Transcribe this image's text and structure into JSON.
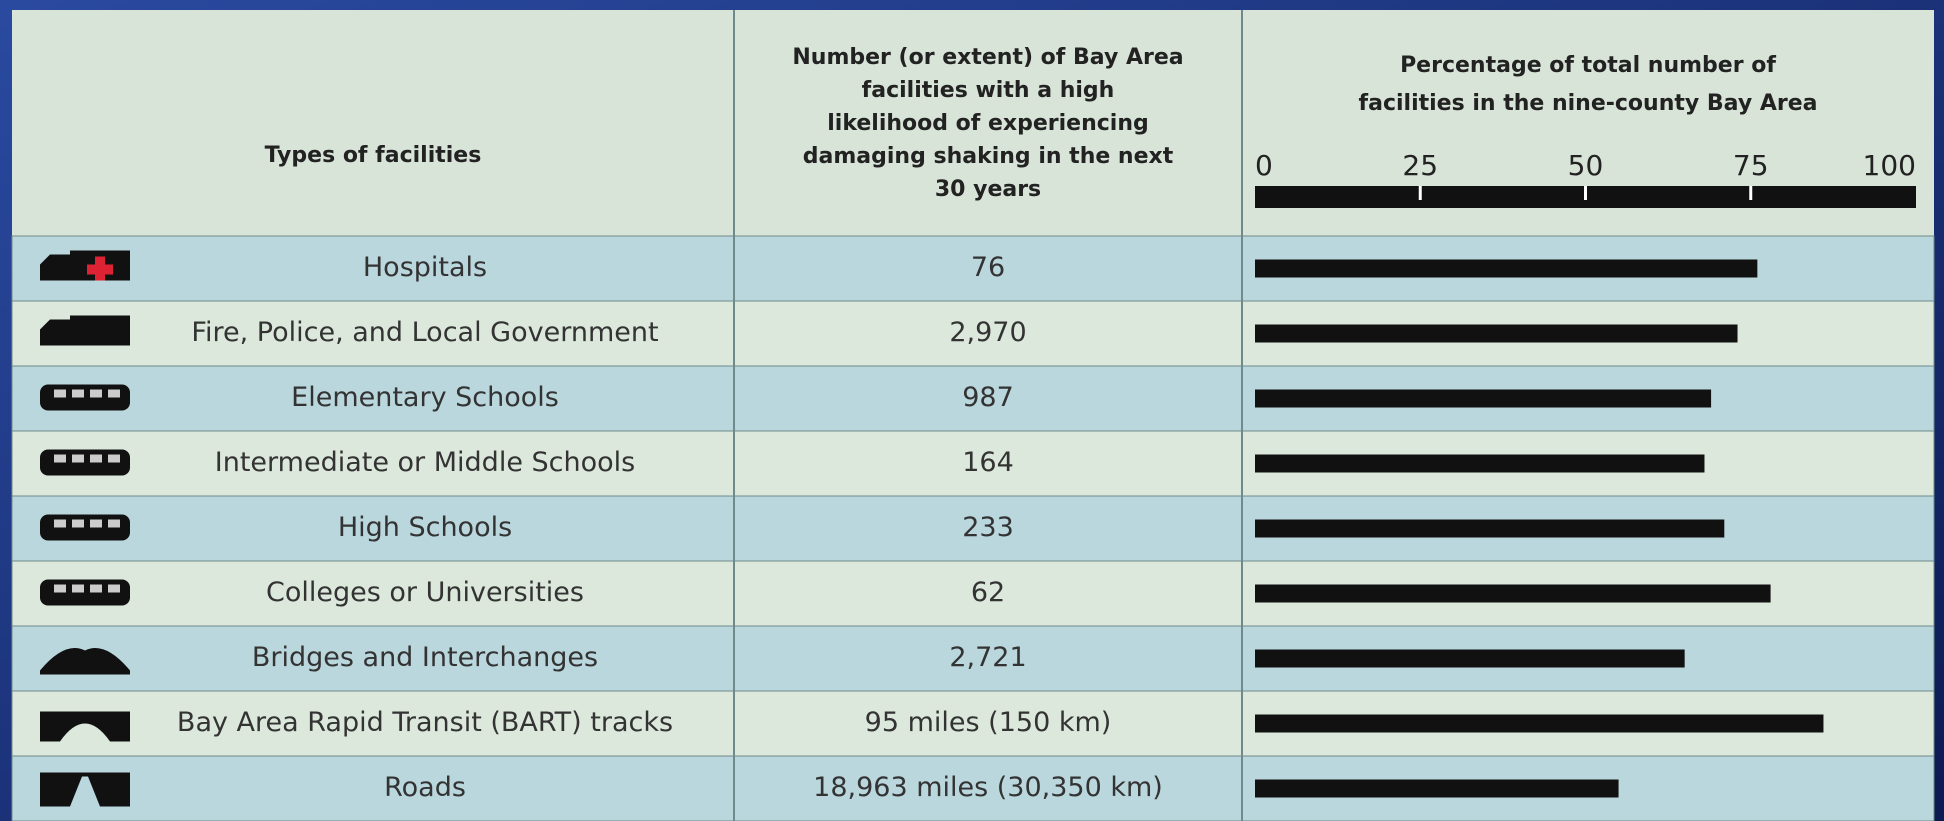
{
  "table": {
    "headers": [
      "Types of facilities",
      "Number (or extent) of Bay Area facilities with a high likelihood of experiencing damaging shaking in the next 30 years",
      "Percentage of total number of facilities in the nine-county Bay Area"
    ],
    "rows": [
      {
        "type": "Hospitals",
        "count": "76",
        "percent": 76
      },
      {
        "type": "Fire, Police, and Local Government",
        "count": "2,970",
        "percent": 73
      },
      {
        "type": "Elementary Schools",
        "count": "987",
        "percent": 69
      },
      {
        "type": "Intermediate or Middle Schools",
        "count": "164",
        "percent": 68
      },
      {
        "type": "High Schools",
        "count": "233",
        "percent": 71
      },
      {
        "type": "Colleges or Universities",
        "count": "62",
        "percent": 78
      },
      {
        "type": "Bridges and Interchanges",
        "count": "2,721",
        "percent": 65
      },
      {
        "type": "Bay Area Rapid Transit (BART) tracks",
        "count": "95 miles (150 km)",
        "percent": 86
      },
      {
        "type": "Roads",
        "count": "18,963 miles (30,350 km)",
        "percent": 55
      }
    ]
  },
  "scale": {
    "xlim": [
      0,
      100
    ],
    "xticks": [
      0,
      25,
      50,
      75,
      100
    ]
  }
}
